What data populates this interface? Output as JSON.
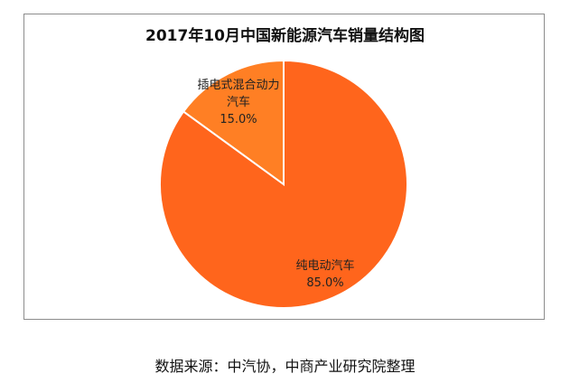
{
  "chart_data": {
    "type": "pie",
    "title": "2017年10月中国新能源汽车销量结构图",
    "slices": [
      {
        "label": "纯电动汽车",
        "value": 85.0,
        "display": "85.0%",
        "color": "#FF651C"
      },
      {
        "label": "插电式混合动力汽车",
        "label_lines": [
          "插电式混合动力",
          "汽车"
        ],
        "value": 15.0,
        "display": "15.0%",
        "color": "#FF7F24"
      }
    ],
    "start": "12 o'clock, slices clockwise",
    "legend": "none"
  },
  "source": "数据来源：中汽协，中商产业研究院整理"
}
